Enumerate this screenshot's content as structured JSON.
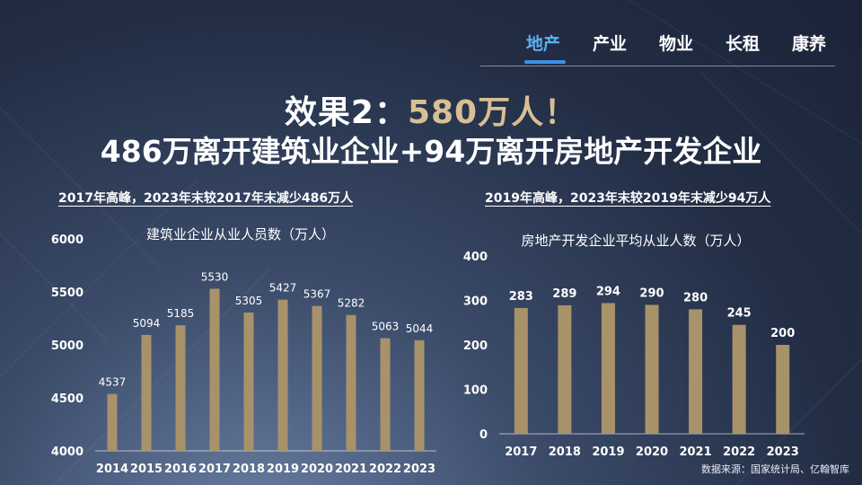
{
  "nav": {
    "tabs": [
      {
        "label": "地产",
        "active": true
      },
      {
        "label": "产业",
        "active": false
      },
      {
        "label": "物业",
        "active": false
      },
      {
        "label": "长租",
        "active": false
      },
      {
        "label": "康养",
        "active": false
      }
    ]
  },
  "headline": {
    "prefix": "效果2：",
    "highlight": "580万人！",
    "line2": "486万离开建筑业企业+94万离开房地产开发企业"
  },
  "left_subtitle": "2017年高峰，2023年末较2017年末减少486万人",
  "right_subtitle": "2019年高峰，2023年末较2019年末减少94万人",
  "source": "数据来源：国家统计局、亿翰智库",
  "colors": {
    "bar": "#a8926a",
    "highlight": "#d8bf93",
    "nav_active": "#5fb0f0"
  },
  "chart_data": [
    {
      "type": "bar",
      "title": "建筑业企业从业人员数（万人）",
      "categories": [
        "2014",
        "2015",
        "2016",
        "2017",
        "2018",
        "2019",
        "2020",
        "2021",
        "2022",
        "2023"
      ],
      "values": [
        4537,
        5094,
        5185,
        5530,
        5305,
        5427,
        5367,
        5282,
        5063,
        5044
      ],
      "ylim": [
        4000,
        6000
      ],
      "yticks": [
        4000,
        4500,
        5000,
        5500,
        6000
      ],
      "grid": false,
      "data_labels": true
    },
    {
      "type": "bar",
      "title": "房地产开发企业平均从业人数（万人）",
      "categories": [
        "2017",
        "2018",
        "2019",
        "2020",
        "2021",
        "2022",
        "2023"
      ],
      "values": [
        283,
        289,
        294,
        290,
        280,
        245,
        200
      ],
      "ylim": [
        0,
        400
      ],
      "yticks": [
        0,
        100,
        200,
        300,
        400
      ],
      "grid": false,
      "data_labels": true
    }
  ]
}
